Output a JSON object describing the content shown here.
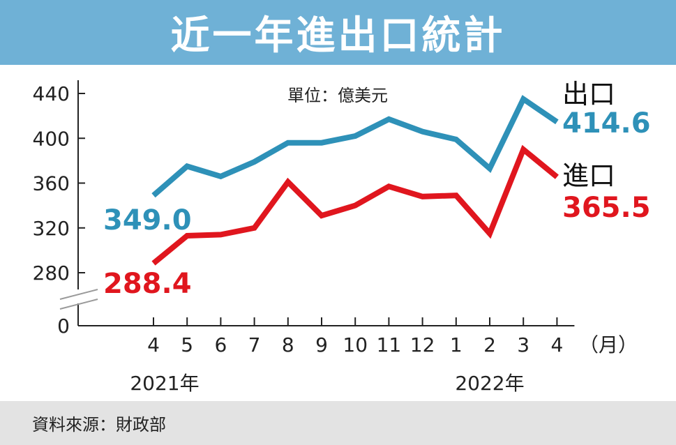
{
  "title": "近一年進出口統計",
  "source": "資料來源：財政部",
  "colors": {
    "title_bg": "#6fb1d6",
    "export": "#2e91b8",
    "import": "#e0161e",
    "axis": "#222222",
    "footer_bg": "#e3e3e3"
  },
  "chart_data": {
    "type": "line",
    "unit": "單位：億美元",
    "x_unit": "（月）",
    "categories": [
      "4",
      "5",
      "6",
      "7",
      "8",
      "9",
      "10",
      "11",
      "12",
      "1",
      "2",
      "3",
      "4"
    ],
    "year_labels": [
      "2021年",
      "2022年"
    ],
    "y_ticks": [
      0,
      280,
      320,
      360,
      400,
      440
    ],
    "y_axis_break": true,
    "ylim": [
      280,
      440
    ],
    "series": [
      {
        "name": "出口",
        "color": "#2e91b8",
        "values": [
          349.0,
          375,
          366,
          379,
          396,
          396,
          402,
          417,
          406,
          399,
          373,
          435,
          414.6
        ],
        "start_label": "349.0",
        "end_label": "414.6"
      },
      {
        "name": "進口",
        "color": "#e0161e",
        "values": [
          288.4,
          313,
          314,
          320,
          361,
          331,
          340,
          357,
          348,
          349,
          315,
          390,
          365.5
        ],
        "start_label": "288.4",
        "end_label": "365.5"
      }
    ]
  }
}
